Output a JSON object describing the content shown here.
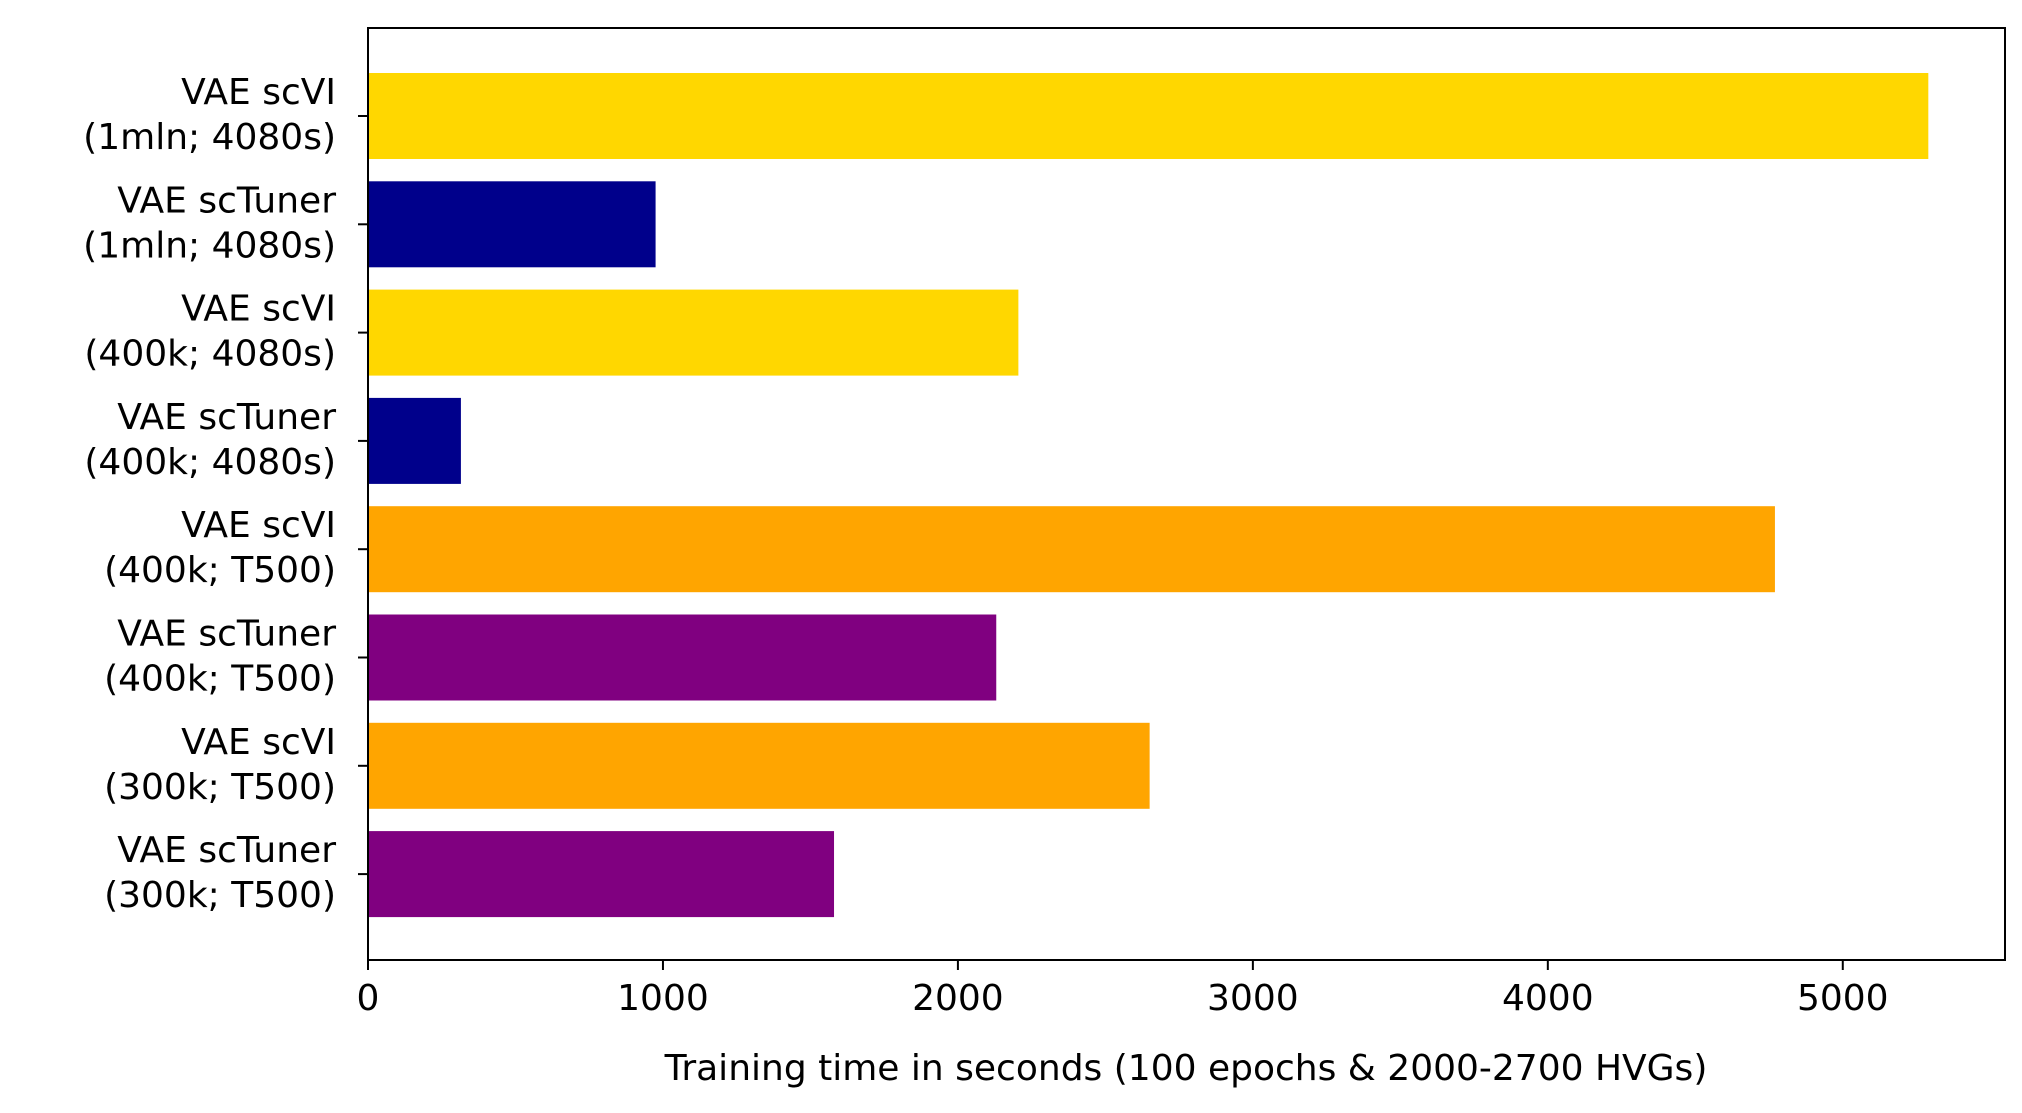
{
  "chart_data": {
    "type": "bar",
    "orientation": "horizontal",
    "title": "",
    "xlabel": "Training time in seconds (100 epochs & 2000-2700 HVGs)",
    "ylabel": "",
    "xlim": [
      0,
      5550
    ],
    "xticks": [
      0,
      1000,
      2000,
      3000,
      4000,
      5000
    ],
    "grid": false,
    "legend": "none",
    "categories": [
      [
        "VAE scVI",
        "(1mln; 4080s)"
      ],
      [
        "VAE scTuner",
        "(1mln; 4080s)"
      ],
      [
        "VAE scVI",
        "(400k; 4080s)"
      ],
      [
        "VAE scTuner",
        "(400k; 4080s)"
      ],
      [
        "VAE scVI",
        "(400k; T500)"
      ],
      [
        "VAE scTuner",
        "(400k; T500)"
      ],
      [
        "VAE scVI",
        "(300k; T500)"
      ],
      [
        "VAE scTuner",
        "(300k; T500)"
      ]
    ],
    "values": [
      5290,
      975,
      2205,
      315,
      4770,
      2130,
      2650,
      1580
    ],
    "colors": [
      "#FFD700",
      "#00008B",
      "#FFD700",
      "#00008B",
      "#FFA500",
      "#800080",
      "#FFA500",
      "#800080"
    ]
  }
}
